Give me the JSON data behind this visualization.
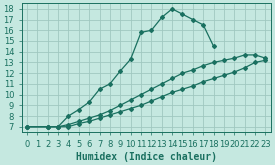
{
  "xlabel": "Humidex (Indice chaleur)",
  "background_color": "#c5e8e0",
  "grid_color": "#a0c8c0",
  "line_color": "#1a7060",
  "xlim": [
    -0.5,
    23.5
  ],
  "ylim": [
    6.5,
    18.5
  ],
  "xticks": [
    0,
    1,
    2,
    3,
    4,
    5,
    6,
    7,
    8,
    9,
    10,
    11,
    12,
    13,
    14,
    15,
    16,
    17,
    18,
    19,
    20,
    21,
    22,
    23
  ],
  "yticks": [
    7,
    8,
    9,
    10,
    11,
    12,
    13,
    14,
    15,
    16,
    17,
    18
  ],
  "series": [
    {
      "x": [
        0,
        2,
        3,
        4,
        5,
        6,
        7,
        8,
        9,
        10,
        11,
        12,
        13,
        14,
        15,
        16,
        17,
        18
      ],
      "y": [
        7,
        7,
        7,
        8.0,
        8.6,
        9.3,
        10.5,
        11.0,
        12.2,
        13.3,
        15.8,
        16.0,
        17.2,
        18.0,
        17.5,
        17.0,
        16.5,
        14.5
      ]
    },
    {
      "x": [
        0,
        2,
        3,
        4,
        5,
        6,
        7,
        8,
        9,
        10,
        11,
        12,
        13,
        14,
        15,
        16,
        17,
        18,
        19,
        20,
        21,
        22,
        23
      ],
      "y": [
        7,
        7,
        7,
        7.2,
        7.5,
        7.8,
        8.1,
        8.5,
        9.0,
        9.5,
        10.0,
        10.5,
        11.0,
        11.5,
        12.0,
        12.3,
        12.7,
        13.0,
        13.2,
        13.4,
        13.7,
        13.7,
        13.4
      ]
    },
    {
      "x": [
        0,
        2,
        3,
        4,
        5,
        6,
        7,
        8,
        9,
        10,
        11,
        12,
        13,
        14,
        15,
        16,
        17,
        18,
        19,
        20,
        21,
        22,
        23
      ],
      "y": [
        7,
        7,
        7,
        7.0,
        7.3,
        7.5,
        7.8,
        8.1,
        8.4,
        8.7,
        9.0,
        9.4,
        9.8,
        10.2,
        10.5,
        10.8,
        11.2,
        11.5,
        11.8,
        12.1,
        12.5,
        13.0,
        13.2
      ]
    }
  ],
  "tick_fontsize": 6,
  "xlabel_fontsize": 7,
  "marker": "D",
  "markersize": 2.0,
  "linewidth": 0.9
}
